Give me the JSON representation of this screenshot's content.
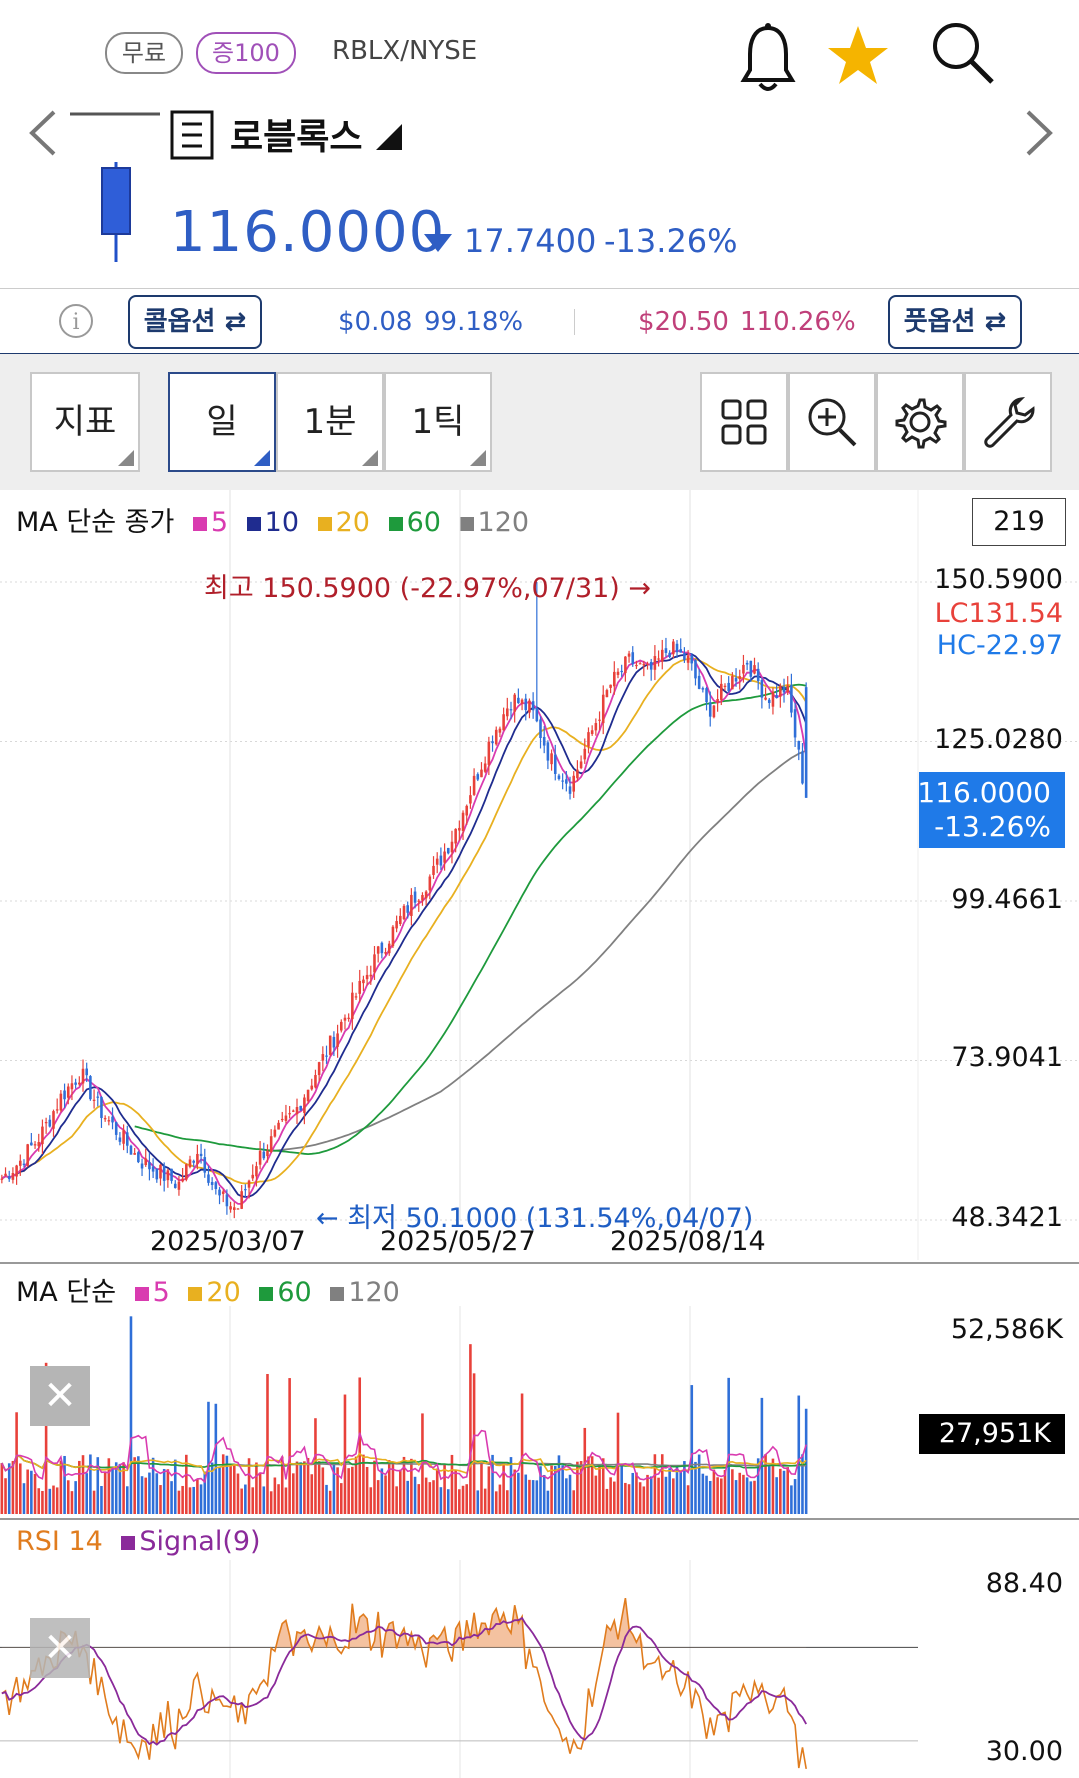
{
  "header": {
    "badge_free": "무료",
    "badge_margin": "증100",
    "symbol": "RBLX/NYSE",
    "stock_name": "로블록스",
    "price": "116.0000",
    "change": "17.7400",
    "change_pct": "-13.26%"
  },
  "options": {
    "call_label": "콜옵션",
    "call_price": "$0.08",
    "call_pct": "99.18%",
    "put_price": "$20.50",
    "put_pct": "110.26%",
    "put_label": "풋옵션"
  },
  "toolbar": {
    "indicator_label": "지표",
    "day_label": "일",
    "min_label": "1분",
    "tick_label": "1틱"
  },
  "price_chart": {
    "legend_title": "MA 단순 종가",
    "ma_periods": [
      "5",
      "10",
      "20",
      "60",
      "120"
    ],
    "count_box": "219",
    "high_annotation": "최고 150.5900 (-22.97%,07/31) →",
    "low_annotation": "← 최저 50.1000 (131.54%,04/07)",
    "lc_label": "LC131.54",
    "hc_label": "HC-22.97",
    "current_price_tag": "116.0000",
    "current_pct_tag": "-13.26%",
    "y_labels": [
      "150.5900",
      "125.0280",
      "99.4661",
      "73.9041",
      "48.3421"
    ],
    "x_labels": [
      "2025/03/07",
      "2025/05/27",
      "2025/08/14"
    ]
  },
  "volume_chart": {
    "legend_title": "MA 단순",
    "ma_periods": [
      "5",
      "20",
      "60",
      "120"
    ],
    "y_top": "52,586K",
    "current_tag": "27,951K"
  },
  "rsi_chart": {
    "rsi_label": "RSI 14",
    "signal_label": "Signal(9)",
    "y_top": "88.40",
    "y_bottom": "30.00"
  },
  "colors": {
    "up": "#e8413a",
    "down": "#2f6fd8",
    "ma5": "#d93bb0",
    "ma10": "#1f2c8f",
    "ma20": "#e8b020",
    "ma60": "#1e9a3c",
    "ma120": "#808080",
    "accent_blue": "#1f7ae8",
    "rsi": "#e07c1e",
    "signal": "#8a2a9a"
  },
  "chart_data": {
    "type": "candlestick",
    "symbol": "RBLX/NYSE",
    "y_range": [
      48.3421,
      150.59
    ],
    "x_ticks": [
      "2025/03/07",
      "2025/05/27",
      "2025/08/14"
    ],
    "high": {
      "value": 150.59,
      "date": "07/31",
      "pct": -22.97
    },
    "low": {
      "value": 50.1,
      "date": "04/07",
      "pct": 131.54
    },
    "last_close": 116.0,
    "approx_close_path": [
      55,
      58,
      62,
      68,
      72,
      66,
      62,
      58,
      56,
      54,
      60,
      52,
      50.1,
      58,
      62,
      66,
      72,
      78,
      84,
      90,
      95,
      100,
      104,
      110,
      118,
      126,
      132,
      130,
      122,
      118,
      126,
      134,
      138,
      136,
      140,
      138,
      130,
      134,
      138,
      132,
      133.74,
      116.0
    ],
    "volume": {
      "y_top_label": "52,586K",
      "last": "27,951K"
    },
    "rsi": {
      "period": 14,
      "signal": 9,
      "y_range": [
        30.0,
        88.4
      ]
    }
  }
}
